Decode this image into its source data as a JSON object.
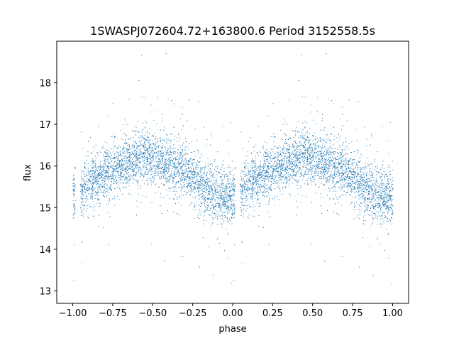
{
  "chart_data": {
    "type": "scatter",
    "title": "1SWASPJ072604.72+163800.6 Period 3152558.5s",
    "xlabel": "phase",
    "ylabel": "flux",
    "xlim": [
      -1.1,
      1.1
    ],
    "ylim": [
      12.7,
      19.0
    ],
    "xticks": [
      -1.0,
      -0.75,
      -0.5,
      -0.25,
      0.0,
      0.25,
      0.5,
      0.75,
      1.0
    ],
    "xtick_labels": [
      "−1.00",
      "−0.75",
      "−0.50",
      "−0.25",
      "0.00",
      "0.25",
      "0.50",
      "0.75",
      "1.00"
    ],
    "yticks": [
      13,
      14,
      15,
      16,
      17,
      18
    ],
    "ytick_labels": [
      "13",
      "14",
      "15",
      "16",
      "17",
      "18"
    ],
    "grid": false,
    "marker_color": "#1f77b4",
    "light_curve": {
      "phase": [
        -1.0,
        -0.9,
        -0.8,
        -0.7,
        -0.6,
        -0.55,
        -0.5,
        -0.4,
        -0.3,
        -0.2,
        -0.1,
        -0.05,
        0.0,
        0.1,
        0.2,
        0.3,
        0.4,
        0.45,
        0.5,
        0.6,
        0.7,
        0.8,
        0.9,
        0.95,
        1.0
      ],
      "flux": [
        15.4,
        15.5,
        15.8,
        16.0,
        16.2,
        16.3,
        16.2,
        16.0,
        15.9,
        15.5,
        15.3,
        15.2,
        15.3,
        15.6,
        15.8,
        16.0,
        16.2,
        16.3,
        16.2,
        16.0,
        15.9,
        15.5,
        15.3,
        15.2,
        15.3
      ]
    }
  }
}
